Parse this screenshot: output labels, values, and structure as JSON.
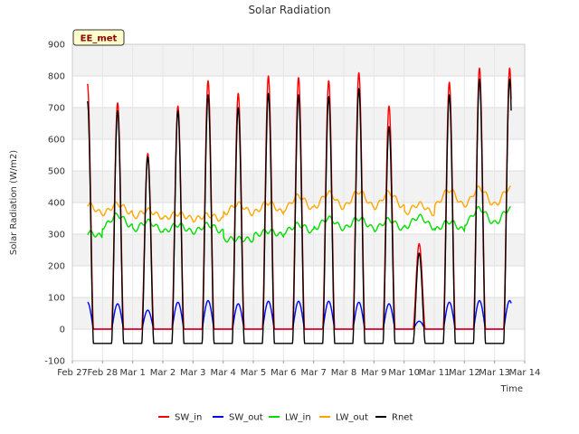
{
  "chart_data": {
    "type": "line",
    "title": "Solar Radiation",
    "xlabel": "Time",
    "ylabel": "Solar Radiation (W/m2)",
    "site_label": "EE_met",
    "ylim": [
      -100,
      900
    ],
    "yticks": [
      -100,
      0,
      100,
      200,
      300,
      400,
      500,
      600,
      700,
      800,
      900
    ],
    "xlim": [
      0,
      15
    ],
    "xticks": [
      {
        "value": 0,
        "label": "Feb 27"
      },
      {
        "value": 1,
        "label": "Feb 28"
      },
      {
        "value": 2,
        "label": "Mar 1"
      },
      {
        "value": 3,
        "label": "Mar 2"
      },
      {
        "value": 4,
        "label": "Mar 3"
      },
      {
        "value": 5,
        "label": "Mar 4"
      },
      {
        "value": 6,
        "label": "Mar 5"
      },
      {
        "value": 7,
        "label": "Mar 6"
      },
      {
        "value": 8,
        "label": "Mar 7"
      },
      {
        "value": 9,
        "label": "Mar 8"
      },
      {
        "value": 10,
        "label": "Mar 9"
      },
      {
        "value": 11,
        "label": "Mar 10"
      },
      {
        "value": 12,
        "label": "Mar 11"
      },
      {
        "value": 13,
        "label": "Mar 12"
      },
      {
        "value": 14,
        "label": "Mar 13"
      },
      {
        "value": 15,
        "label": "Mar 14"
      }
    ],
    "grid": true,
    "legend_position": "bottom",
    "days_start_x": 0.5,
    "day_count": 14,
    "peaks": {
      "SW_in": [
        775,
        715,
        555,
        705,
        785,
        745,
        800,
        795,
        785,
        810,
        705,
        270,
        780,
        825
      ],
      "SW_out": [
        85,
        80,
        60,
        85,
        90,
        80,
        88,
        88,
        88,
        85,
        80,
        25,
        85,
        90
      ],
      "LW_in": [
        305,
        360,
        340,
        330,
        330,
        285,
        310,
        330,
        350,
        350,
        345,
        355,
        340,
        380
      ],
      "LW_out": [
        395,
        395,
        375,
        365,
        360,
        395,
        400,
        420,
        430,
        435,
        430,
        395,
        440,
        445
      ],
      "Rnet": [
        720,
        690,
        545,
        690,
        740,
        700,
        745,
        740,
        735,
        760,
        640,
        240,
        740,
        790
      ]
    },
    "night": {
      "SW_in": 0,
      "SW_out": 0,
      "LW_in": 280,
      "LW_out": 330,
      "Rnet": -45
    },
    "series": [
      {
        "name": "SW_in",
        "color": "#ff0000"
      },
      {
        "name": "SW_out",
        "color": "#0000ff"
      },
      {
        "name": "LW_in",
        "color": "#00dd00"
      },
      {
        "name": "LW_out",
        "color": "#ffa500"
      },
      {
        "name": "Rnet",
        "color": "#000000"
      }
    ]
  }
}
